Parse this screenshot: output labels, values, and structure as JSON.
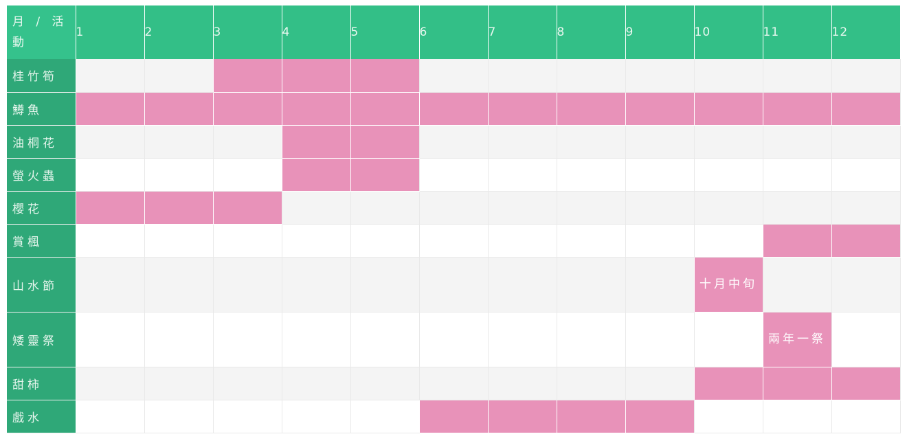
{
  "header": {
    "corner_label": "月 / 活動",
    "months": [
      "1",
      "2",
      "3",
      "4",
      "5",
      "6",
      "7",
      "8",
      "9",
      "10",
      "11",
      "12"
    ]
  },
  "colors": {
    "header_green": "#33bf87",
    "row_head_green": "#2fa878",
    "highlight_pink": "#e892b9",
    "stripe_gray": "#f4f4f4"
  },
  "rows": [
    {
      "label": "桂竹筍",
      "active_months": [
        3,
        4,
        5
      ],
      "notes": {}
    },
    {
      "label": "鱒魚",
      "active_months": [
        1,
        2,
        3,
        4,
        5,
        6,
        7,
        8,
        9,
        10,
        11,
        12
      ],
      "notes": {}
    },
    {
      "label": "油桐花",
      "active_months": [
        4,
        5
      ],
      "notes": {}
    },
    {
      "label": "螢火蟲",
      "active_months": [
        4,
        5
      ],
      "notes": {}
    },
    {
      "label": "櫻花",
      "active_months": [
        1,
        2,
        3
      ],
      "notes": {}
    },
    {
      "label": "賞楓",
      "active_months": [
        11,
        12
      ],
      "notes": {}
    },
    {
      "label": "山水節",
      "active_months": [
        10
      ],
      "notes": {
        "10": "十月中旬"
      }
    },
    {
      "label": "矮靈祭",
      "active_months": [
        11
      ],
      "notes": {
        "11": "兩年一祭"
      }
    },
    {
      "label": "甜柿",
      "active_months": [
        10,
        11,
        12
      ],
      "notes": {}
    },
    {
      "label": "戲水",
      "active_months": [
        6,
        7,
        8,
        9
      ],
      "notes": {}
    }
  ]
}
